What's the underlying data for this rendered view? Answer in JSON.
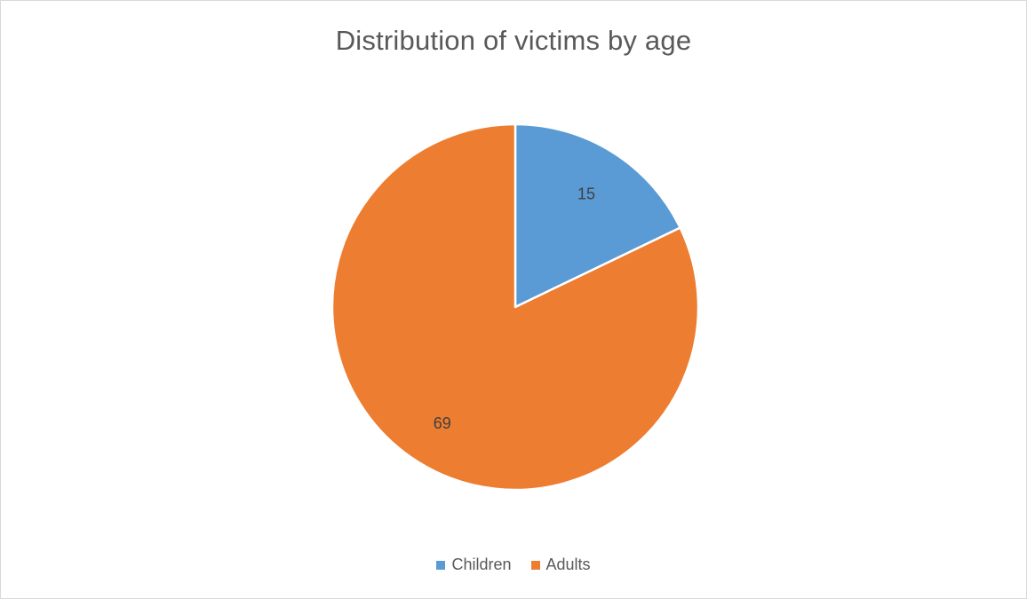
{
  "chart_data": {
    "type": "pie",
    "title": "Distribution of victims by age",
    "categories": [
      "Children",
      "Adults"
    ],
    "values": [
      15,
      69
    ],
    "colors": [
      "#5b9bd5",
      "#ed7d31"
    ],
    "data_labels": [
      "15",
      "69"
    ],
    "start_angle_deg": 0,
    "direction": "clockwise",
    "legend_position": "bottom"
  }
}
